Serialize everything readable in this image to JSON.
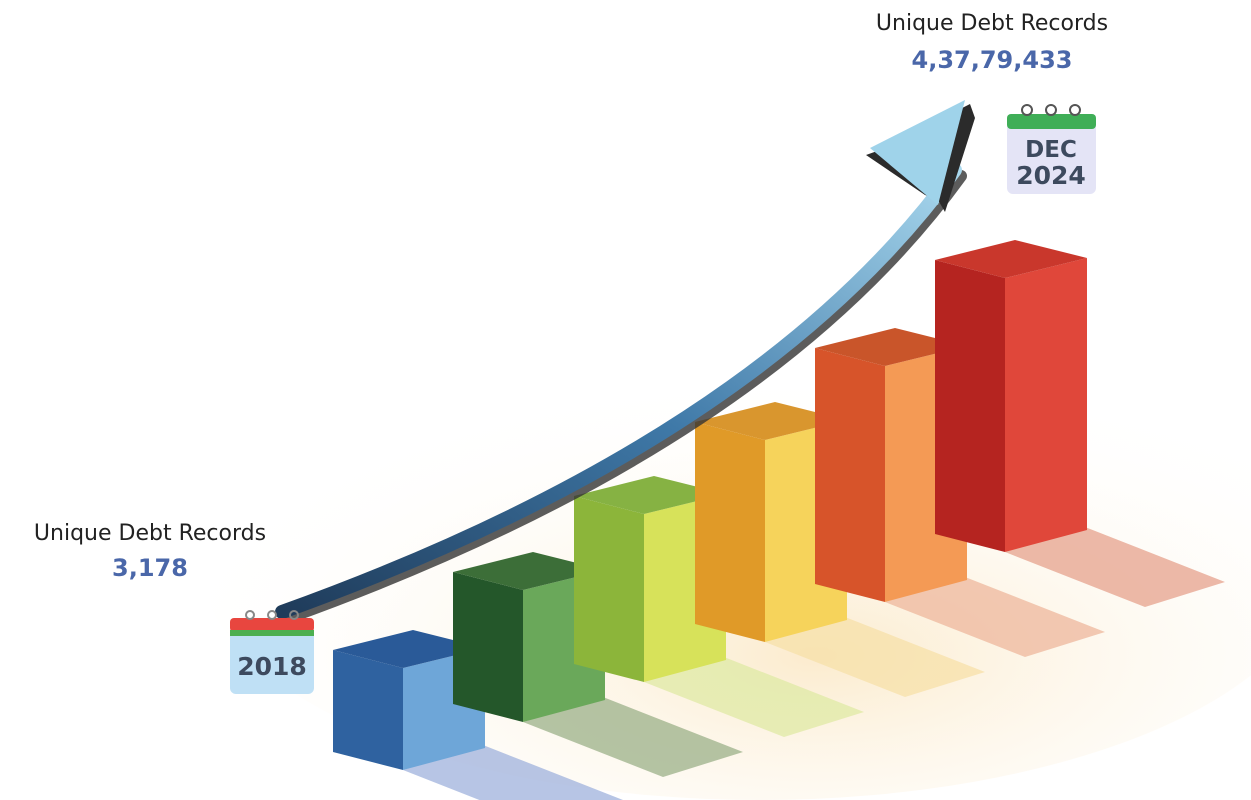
{
  "start": {
    "label": "Unique Debt Records",
    "value": "3,178",
    "year": "2018"
  },
  "end": {
    "label": "Unique Debt Records",
    "value": "4,37,79,433",
    "month": "DEC",
    "year": "2024"
  }
}
